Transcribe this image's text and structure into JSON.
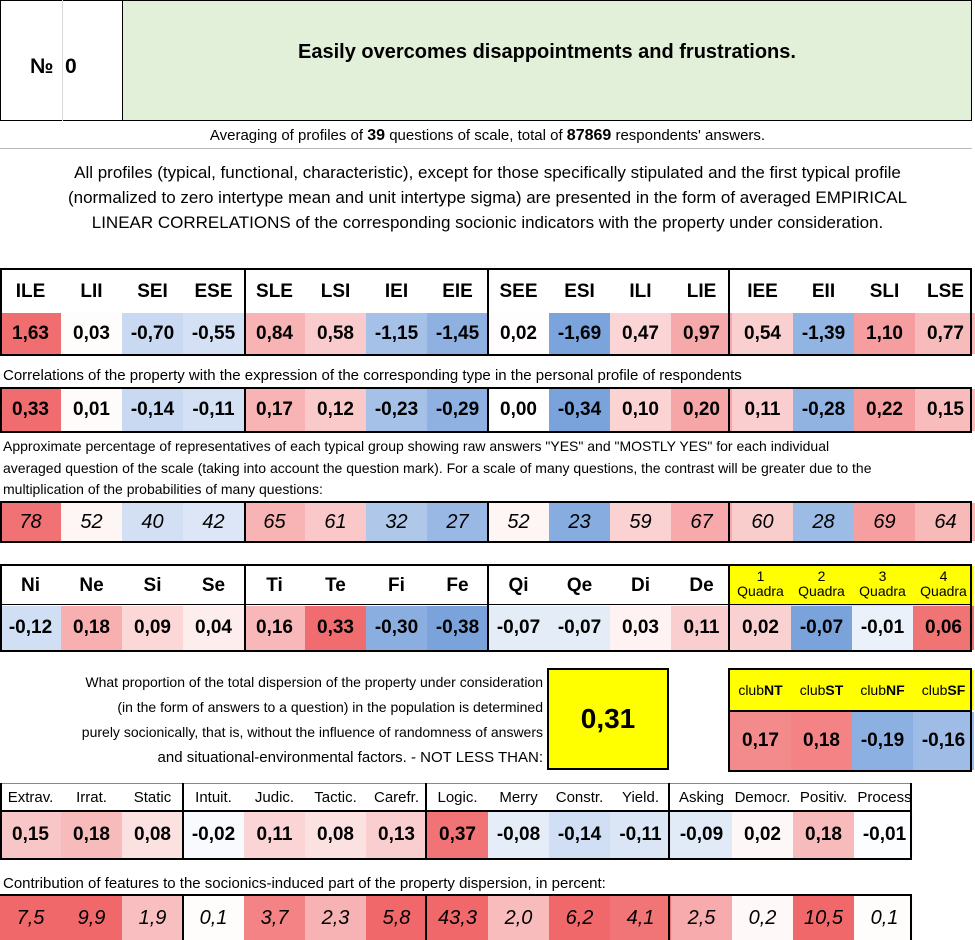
{
  "header": {
    "number_label": "№",
    "number_value": "0",
    "title": "Easily overcomes disappointments and frustrations."
  },
  "averaging": {
    "prefix": "Averaging of profiles of",
    "questions": "39",
    "middle": "questions of scale, total of",
    "answers": "87869",
    "suffix": "respondents' answers."
  },
  "description": [
    "All profiles (typical, functional, characteristic), except for those specifically stipulated and the first typical profile",
    "(normalized to zero intertype mean and unit intertype sigma) are presented in the form of averaged EMPIRICAL",
    "LINEAR CORRELATIONS of the corresponding socionic indicators with the property under consideration."
  ],
  "types": [
    "ILE",
    "LII",
    "SEI",
    "ESE",
    "SLE",
    "LSI",
    "IEI",
    "EIE",
    "SEE",
    "ESI",
    "ILI",
    "LIE",
    "IEE",
    "EII",
    "SLI",
    "LSE"
  ],
  "typical_profile": [
    "1,63",
    "0,03",
    "-0,70",
    "-0,55",
    "0,84",
    "0,58",
    "-1,15",
    "-1,45",
    "0,02",
    "-1,69",
    "0,47",
    "0,97",
    "0,54",
    "-1,39",
    "1,10",
    "0,77"
  ],
  "correlation_caption": "Correlations of the property with the expression of the corresponding type in the personal profile of respondents",
  "correlations": [
    "0,33",
    "0,01",
    "-0,14",
    "-0,11",
    "0,17",
    "0,12",
    "-0,23",
    "-0,29",
    "0,00",
    "-0,34",
    "0,10",
    "0,20",
    "0,11",
    "-0,28",
    "0,22",
    "0,15"
  ],
  "percentage_caption": [
    "Approximate percentage of representatives of each typical group showing raw answers \"YES\" and \"MOSTLY YES\" for each individual",
    "averaged question of the scale (taking into account the question mark). For a scale of many questions, the contrast will be greater due to the",
    "multiplication of the probabilities of many questions:"
  ],
  "percentages": [
    "78",
    "52",
    "40",
    "42",
    "65",
    "61",
    "32",
    "27",
    "52",
    "23",
    "59",
    "67",
    "60",
    "28",
    "69",
    "64"
  ],
  "functions": [
    "Ni",
    "Ne",
    "Si",
    "Se",
    "Ti",
    "Te",
    "Fi",
    "Fe",
    "Qi",
    "Qe",
    "Di",
    "De"
  ],
  "function_values": [
    "-0,12",
    "0,18",
    "0,09",
    "0,04",
    "0,16",
    "0,33",
    "-0,30",
    "-0,38",
    "-0,07",
    "-0,07",
    "0,03",
    "0,11"
  ],
  "quadras": [
    {
      "num": "1",
      "label": "Quadra"
    },
    {
      "num": "2",
      "label": "Quadra"
    },
    {
      "num": "3",
      "label": "Quadra"
    },
    {
      "num": "4",
      "label": "Quadra"
    }
  ],
  "quadra_values": [
    "0,02",
    "-0,07",
    "-0,01",
    "0,06"
  ],
  "dispersion_text": [
    "What proportion of the total dispersion of the property under consideration",
    "(in the form of answers to a question) in the population is determined",
    "purely socionically, that is, without the influence of randomness of answers",
    "and situational-environmental factors. - NOT LESS THAN:"
  ],
  "dispersion_value": "0,31",
  "clubs": [
    {
      "prefix": "club",
      "suffix": "NT"
    },
    {
      "prefix": "club",
      "suffix": "ST"
    },
    {
      "prefix": "club",
      "suffix": "NF"
    },
    {
      "prefix": "club",
      "suffix": "SF"
    }
  ],
  "club_values": [
    "0,17",
    "0,18",
    "-0,19",
    "-0,16"
  ],
  "traits": [
    "Extrav.",
    "Irrat.",
    "Static",
    "Intuit.",
    "Judic.",
    "Tactic.",
    "Carefr.",
    "Logic.",
    "Merry",
    "Constr.",
    "Yield.",
    "Asking",
    "Democr.",
    "Positiv.",
    "Process"
  ],
  "trait_values": [
    "0,15",
    "0,18",
    "0,08",
    "-0,02",
    "0,11",
    "0,08",
    "0,13",
    "0,37",
    "-0,08",
    "-0,14",
    "-0,11",
    "-0,09",
    "0,02",
    "0,18",
    "-0,01"
  ],
  "contribution_caption": "Contribution of features to the socionics-induced part of the property dispersion, in percent:",
  "contributions": [
    "7,5",
    "9,9",
    "1,9",
    "0,1",
    "3,7",
    "2,3",
    "5,8",
    "43,3",
    "2,0",
    "6,2",
    "4,1",
    "2,5",
    "0,2",
    "10,5",
    "0,1"
  ],
  "colors": {
    "title_bg": "#e2f0d9",
    "highlight_yellow": "#ffff00",
    "strong_positive": "#f0686a",
    "strong_negative": "#7aa3dc"
  }
}
